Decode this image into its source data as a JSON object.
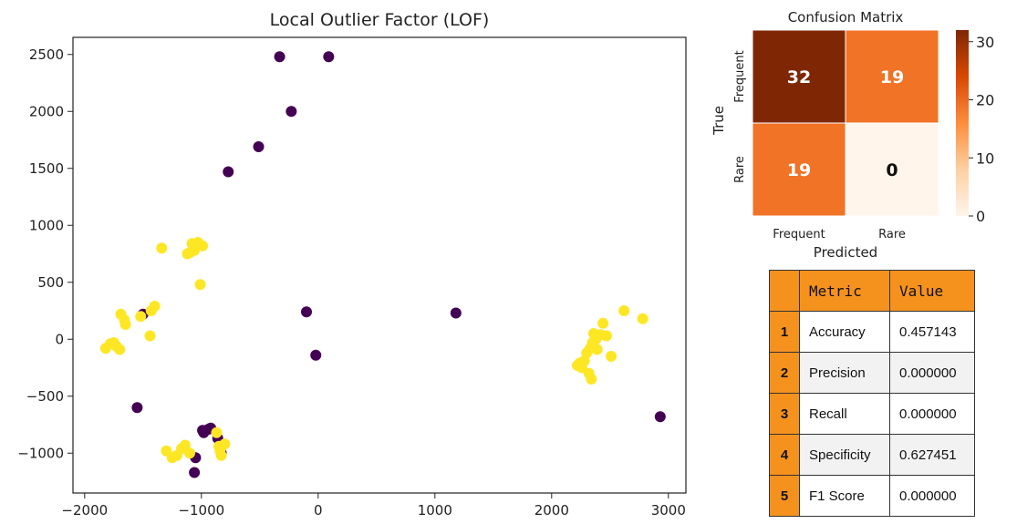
{
  "chart_data": [
    {
      "type": "scatter",
      "title": "Local Outlier Factor (LOF)",
      "xlim": [
        -2100,
        3150
      ],
      "ylim": [
        -1350,
        2650
      ],
      "xticks": [
        -2000,
        -1000,
        0,
        1000,
        2000,
        3000
      ],
      "yticks": [
        -1000,
        -500,
        0,
        500,
        1000,
        1500,
        2000,
        2500
      ],
      "xtick_labels": [
        "−2000",
        "−1000",
        "0",
        "1000",
        "2000",
        "3000"
      ],
      "ytick_labels": [
        "−1000",
        "−500",
        "0",
        "500",
        "1000",
        "1500",
        "2000",
        "2500"
      ],
      "colors": {
        "outlier": "#440154",
        "inlier": "#fde725"
      },
      "series": [
        {
          "role": "outlier",
          "x": [
            -330,
            90,
            -230,
            -510,
            -770,
            -100,
            1180,
            -20,
            -1500,
            -1550,
            2930,
            -940,
            -990,
            -980,
            -860,
            -1050,
            -1060,
            -830,
            -920
          ],
          "y": [
            2480,
            2480,
            2000,
            1690,
            1470,
            240,
            230,
            -140,
            220,
            -600,
            -680,
            -790,
            -800,
            -820,
            -870,
            -1040,
            -1170,
            -1000,
            -780
          ]
        },
        {
          "role": "inlier",
          "x": [
            -1340,
            -1100,
            -1080,
            -1030,
            -990,
            -1060,
            -1120,
            -1010,
            -1690,
            -1660,
            -1650,
            -1430,
            -1400,
            -1440,
            -1820,
            -1780,
            -1750,
            -1730,
            -1700,
            -1520,
            -1300,
            -1250,
            -1210,
            -1170,
            -1140,
            -1100,
            -850,
            -800,
            -830,
            -840,
            -870,
            2620,
            2780,
            2440,
            2360,
            2420,
            2380,
            2350,
            2330,
            2300,
            2280,
            2240,
            2220,
            2260,
            2320,
            2340,
            2470,
            2510,
            2390
          ],
          "y": [
            800,
            760,
            840,
            850,
            820,
            780,
            750,
            480,
            220,
            170,
            130,
            250,
            290,
            30,
            -80,
            -40,
            -30,
            -60,
            -90,
            200,
            -980,
            -1040,
            -1020,
            -960,
            -930,
            -1000,
            -940,
            -920,
            -1020,
            -980,
            -820,
            250,
            180,
            140,
            50,
            40,
            0,
            -30,
            -80,
            -120,
            -190,
            -210,
            -230,
            -250,
            -300,
            -350,
            30,
            -150,
            -90
          ]
        }
      ]
    },
    {
      "type": "heatmap",
      "title": "Confusion Matrix",
      "xlabel": "Predicted",
      "ylabel": "True",
      "x_categories": [
        "Frequent",
        "Rare"
      ],
      "y_categories": [
        "Frequent",
        "Rare"
      ],
      "values": [
        [
          32,
          19
        ],
        [
          19,
          0
        ]
      ],
      "colorbar_ticks": [
        0,
        10,
        20,
        30
      ],
      "colorbar_range": [
        0,
        32
      ],
      "colormap": [
        "#fff5eb",
        "#fdd0a2",
        "#fd8d3c",
        "#d94801",
        "#7f2704"
      ]
    },
    {
      "type": "table",
      "columns": [
        "",
        "Metric",
        "Value"
      ],
      "rows": [
        {
          "idx": "1",
          "metric": "Accuracy",
          "value": "0.457143"
        },
        {
          "idx": "2",
          "metric": "Precision",
          "value": "0.000000"
        },
        {
          "idx": "3",
          "metric": "Recall",
          "value": "0.000000"
        },
        {
          "idx": "4",
          "metric": "Specificity",
          "value": "0.627451"
        },
        {
          "idx": "5",
          "metric": "F1 Score",
          "value": "0.000000"
        }
      ],
      "header_color": "#f5921e"
    }
  ]
}
